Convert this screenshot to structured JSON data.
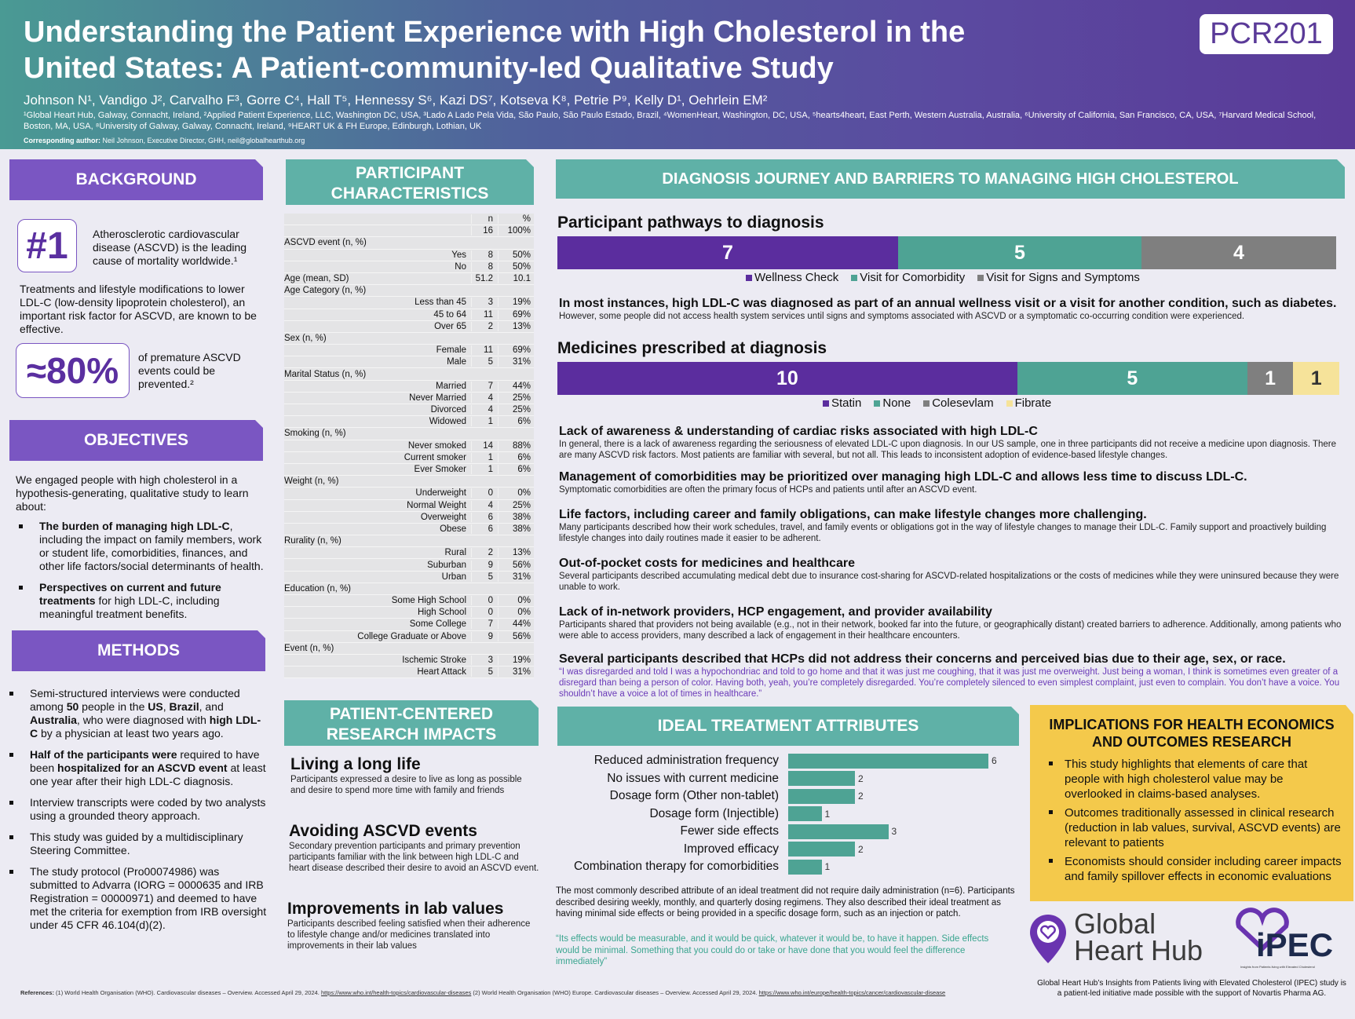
{
  "header": {
    "title": "Understanding the Patient Experience with High Cholesterol in the United States: A Patient-community-led Qualitative Study",
    "badge": "PCR201",
    "authors": "Johnson N¹, Vandigo J², Carvalho F³, Gorre C⁴, Hall T⁵, Hennessy S⁶, Kazi DS⁷, Kotseva K⁸, Petrie P⁹, Kelly D¹, Oehrlein EM²",
    "affiliations": "¹Global Heart Hub, Galway, Connacht, Ireland, ²Applied Patient Experience, LLC, Washington DC, USA, ³Lado A Lado Pela Vida, São Paulo, São Paulo Estado, Brazil, ⁴WomenHeart, Washington, DC, USA, ⁵hearts4heart, East Perth, Western Australia, Australia, ⁶University of California, San Francisco, CA, USA, ⁷Harvard Medical School, Boston, MA, USA, ⁸University of Galway, Galway, Connacht, Ireland, ⁹HEART UK & FH Europe, Edinburgh, Lothian, UK",
    "corr_label": "Corresponding author:",
    "corr_text": " Neil Johnson, Executive Director, GHH, neil@globalhearthub.org"
  },
  "background": {
    "heading": "BACKGROUND",
    "stat1": "#1",
    "stat1_text": "Atherosclerotic cardiovascular disease (ASCVD) is the leading cause of mortality worldwide.¹",
    "para": "Treatments and lifestyle modifications to lower LDL-C (low-density lipoprotein cholesterol), an important risk factor for ASCVD, are known to be effective.",
    "stat2": "≈80%",
    "stat2_text": "of premature ASCVD events could be prevented.²"
  },
  "objectives": {
    "heading": "OBJECTIVES",
    "intro": "We engaged people with high cholesterol  in a hypothesis-generating, qualitative study to learn about:",
    "items": [
      {
        "bold": "The burden of managing high LDL-C",
        "text": ", including the impact on family members, work or student life, comorbidities, finances, and other life factors/social determinants of health."
      },
      {
        "bold": "Perspectives on current and future treatments",
        "text": " for high LDL-C, including meaningful treatment benefits."
      }
    ]
  },
  "methods": {
    "heading": "METHODS",
    "items": [
      "Semi-structured interviews were conducted among <b>50</b> people in the <b>US</b>, <b>Brazil</b>, and <b>Australia</b>, who were diagnosed with <b>high LDL-C</b> by a physician at least two years ago.",
      "<b>Half of the participants were</b> required to have been <b>hospitalized for an ASCVD event</b> at least one year after their high LDL-C diagnosis.",
      "Interview transcripts were coded by two analysts using a grounded theory approach.",
      "This study was guided by a multidisciplinary Steering Committee.",
      "The study protocol (Pro00074986) was submitted to Advarra (IORG = 0000635 and IRB Registration = 00000971) and deemed to have met the criteria for exemption from IRB oversight under 45 CFR 46.104(d)(2)."
    ]
  },
  "participants": {
    "heading": "PARTICIPANT CHARACTERISTICS",
    "col_n": "n",
    "col_pct": "%",
    "rows": [
      {
        "type": "total",
        "label": "",
        "n": "16",
        "pct": "100%"
      },
      {
        "type": "cat",
        "label": "ASCVD event (n, %)"
      },
      {
        "type": "row",
        "label": "Yes",
        "n": "8",
        "pct": "50%"
      },
      {
        "type": "row",
        "label": "No",
        "n": "8",
        "pct": "50%"
      },
      {
        "type": "catval",
        "label": "Age (mean, SD)",
        "n": "51.2",
        "pct": "10.1"
      },
      {
        "type": "cat",
        "label": "Age Category (n, %)"
      },
      {
        "type": "row",
        "label": "Less than 45",
        "n": "3",
        "pct": "19%"
      },
      {
        "type": "row",
        "label": "45 to 64",
        "n": "11",
        "pct": "69%"
      },
      {
        "type": "row",
        "label": "Over 65",
        "n": "2",
        "pct": "13%"
      },
      {
        "type": "cat",
        "label": "Sex (n, %)"
      },
      {
        "type": "row",
        "label": "Female",
        "n": "11",
        "pct": "69%"
      },
      {
        "type": "row",
        "label": "Male",
        "n": "5",
        "pct": "31%"
      },
      {
        "type": "cat",
        "label": "Marital Status (n, %)"
      },
      {
        "type": "row",
        "label": "Married",
        "n": "7",
        "pct": "44%"
      },
      {
        "type": "row",
        "label": "Never Married",
        "n": "4",
        "pct": "25%"
      },
      {
        "type": "row",
        "label": "Divorced",
        "n": "4",
        "pct": "25%"
      },
      {
        "type": "row",
        "label": "Widowed",
        "n": "1",
        "pct": "6%"
      },
      {
        "type": "cat",
        "label": "Smoking (n, %)"
      },
      {
        "type": "row",
        "label": "Never smoked",
        "n": "14",
        "pct": "88%"
      },
      {
        "type": "row",
        "label": "Current smoker",
        "n": "1",
        "pct": "6%"
      },
      {
        "type": "row",
        "label": "Ever Smoker",
        "n": "1",
        "pct": "6%"
      },
      {
        "type": "cat",
        "label": "Weight (n, %)"
      },
      {
        "type": "row",
        "label": "Underweight",
        "n": "0",
        "pct": "0%"
      },
      {
        "type": "row",
        "label": "Normal Weight",
        "n": "4",
        "pct": "25%"
      },
      {
        "type": "row",
        "label": "Overweight",
        "n": "6",
        "pct": "38%"
      },
      {
        "type": "row",
        "label": "Obese",
        "n": "6",
        "pct": "38%"
      },
      {
        "type": "cat",
        "label": "Rurality (n, %)"
      },
      {
        "type": "row",
        "label": "Rural",
        "n": "2",
        "pct": "13%"
      },
      {
        "type": "row",
        "label": "Suburban",
        "n": "9",
        "pct": "56%"
      },
      {
        "type": "row",
        "label": "Urban",
        "n": "5",
        "pct": "31%"
      },
      {
        "type": "cat",
        "label": "Education (n, %)"
      },
      {
        "type": "row",
        "label": "Some High School",
        "n": "0",
        "pct": "0%"
      },
      {
        "type": "row",
        "label": "High School",
        "n": "0",
        "pct": "0%"
      },
      {
        "type": "row",
        "label": "Some College",
        "n": "7",
        "pct": "44%"
      },
      {
        "type": "row",
        "label": "College Graduate or Above",
        "n": "9",
        "pct": "56%"
      },
      {
        "type": "cat",
        "label": "Event (n, %)"
      },
      {
        "type": "row",
        "label": "Ischemic Stroke",
        "n": "3",
        "pct": "19%"
      },
      {
        "type": "row",
        "label": "Heart Attack",
        "n": "5",
        "pct": "31%"
      }
    ]
  },
  "impacts": {
    "heading": "PATIENT-CENTERED RESEARCH IMPACTS",
    "items": [
      {
        "title": "Living a long life",
        "text": "Participants expressed a desire to live as long as possible and desire to spend more time with family and friends"
      },
      {
        "title": "Avoiding ASCVD events",
        "text": "Secondary prevention participants and primary prevention participants familiar with the link between high LDL-C and heart disease described their desire to avoid an ASCVD event."
      },
      {
        "title": "Improvements in lab values",
        "text": "Participants described feeling satisfied when their adherence to lifestyle change and/or medicines translated into improvements in their lab values"
      }
    ]
  },
  "diagnosis": {
    "heading": "DIAGNOSIS JOURNEY AND BARRIERS TO MANAGING HIGH CHOLESTEROL",
    "finding_bold": "In most instances, high LDL-C was diagnosed as part of an annual wellness visit or a visit for another condition, such as diabetes.",
    "finding_text": "However, some people did not access health system services until signs and symptoms associated with ASCVD or a symptomatic co-occurring condition were experienced.",
    "themes": [
      {
        "title": "Lack of awareness & understanding of cardiac risks associated with high LDL-C",
        "text": "In general, there is a lack of awareness regarding the seriousness of elevated LDL-C upon diagnosis. In our US sample, one in three participants did not receive a medicine upon diagnosis. There are many ASCVD risk factors. Most patients are familiar with several, but not all. This leads to inconsistent adoption of evidence-based lifestyle changes."
      },
      {
        "title": "Management of comorbidities may be prioritized over managing high LDL-C and allows less time to discuss LDL-C.",
        "text": "Symptomatic comorbidities are often the primary focus of HCPs and patients until after an ASCVD event."
      },
      {
        "title": "Life factors, including career and family obligations, can make lifestyle changes more challenging.",
        "text": "Many participants described how their work schedules, travel, and family events or obligations got in the way of lifestyle changes to manage their LDL-C. Family support and proactively building lifestyle changes into daily routines made it easier to be adherent."
      },
      {
        "title": "Out-of-pocket costs for medicines and healthcare",
        "text": "Several participants described accumulating medical debt due to insurance cost-sharing for ASCVD-related hospitalizations or the costs of medicines while they were uninsured because they were unable to work."
      },
      {
        "title": "Lack of in-network providers, HCP engagement, and provider availability",
        "text": "Participants shared that providers not being available (e.g., not in their network, booked far into the future, or geographically distant) created barriers to adherence. Additionally, among patients who were able to access providers, many described a lack of engagement in their healthcare encounters."
      },
      {
        "title": "Several participants described that HCPs did not address their concerns and perceived bias due to their age, sex, or race.",
        "text": "“I was disregarded and told I was a hypochondriac and told to go home and that it was just me coughing, that it was just me overweight. Just being a woman, I think is sometimes even greater of a disregard than being a person of color. Having both, yeah, you’re completely disregarded. You’re completely silenced to even simplest complaint, just even to complain. You don’t have a voice. You shouldn’t have a voice a lot of times in healthcare.”",
        "quote": true
      }
    ]
  },
  "ideal": {
    "heading": "IDEAL TREATMENT ATTRIBUTES",
    "summary": "The most commonly described attribute of an ideal treatment did not require daily administration (n=6). Participants described desiring weekly, monthly, and quarterly dosing regimens. They also described their ideal treatment as having minimal side effects or being provided in a specific dosage form, such as an injection or patch.",
    "quote": "“Its effects would be measurable, and it would be quick, whatever it would be, to have it happen. Side effects would be minimal. Something that you could do or take or have done that you would feel the difference immediately”"
  },
  "implications": {
    "heading": "IMPLICATIONS FOR HEALTH ECONOMICS AND OUTCOMES RESEARCH",
    "items": [
      "This study highlights that elements of care that people with high cholesterol value may be overlooked in claims-based analyses.",
      "Outcomes traditionally assessed in clinical research (reduction in lab values, survival, ASCVD events) are relevant to patients",
      "Economists should consider including career impacts and family spillover effects in economic evaluations"
    ]
  },
  "logos": {
    "ghh_line1": "Global",
    "ghh_line2": "Heart Hub",
    "ipec": "iPEC",
    "ipec_sub": "Insights from Patients living with Elevated Cholesterol",
    "support": "Global Heart Hub’s Insights from Patients living with Elevated Cholesterol (IPEC) study is a patient-led initiative made possible with the support of Novartis Pharma AG."
  },
  "references": {
    "label": "References:",
    "ref1": " (1) World Health Organisation (WHO). Cardiovascular diseases – Overview. Accessed April 29, 2024. ",
    "ref1_link": "https://www.who.int/health-topics/cardiovascular-diseases",
    "ref2": " (2) World Health Organisation (WHO) Europe. Cardiovascular diseases – Overview. Accessed April 29, 2024. ",
    "ref2_link": "https://www.who.int/europe/health-topics/cancer/cardiovascular-disease"
  },
  "colors": {
    "purple": "#5b2d9e",
    "teal": "#4ea394",
    "gray": "#7f7f7f",
    "yellow": "#f6e39a"
  },
  "chart_data": [
    {
      "type": "bar",
      "orientation": "horizontal-stacked",
      "title": "Participant pathways to diagnosis",
      "series": [
        {
          "name": "Wellness Check",
          "values": [
            7
          ],
          "color": "#5b2d9e"
        },
        {
          "name": "Visit for Comorbidity",
          "values": [
            5
          ],
          "color": "#4ea394"
        },
        {
          "name": "Visit for Signs and Symptoms",
          "values": [
            4
          ],
          "color": "#7f7f7f"
        }
      ],
      "legend": "bottom"
    },
    {
      "type": "bar",
      "orientation": "horizontal-stacked",
      "title": "Medicines prescribed at diagnosis",
      "series": [
        {
          "name": "Statin",
          "values": [
            10
          ],
          "color": "#5b2d9e"
        },
        {
          "name": "None",
          "values": [
            5
          ],
          "color": "#4ea394"
        },
        {
          "name": "Colesevlam",
          "values": [
            1
          ],
          "color": "#7f7f7f"
        },
        {
          "name": "Fibrate",
          "values": [
            1
          ],
          "color": "#f6e39a"
        }
      ],
      "legend": "bottom"
    },
    {
      "type": "bar",
      "orientation": "horizontal",
      "title": "IDEAL TREATMENT ATTRIBUTES",
      "categories": [
        "Reduced administration frequency",
        "No issues with current medicine",
        "Dosage form (Other non-tablet)",
        "Dosage form (Injectible)",
        "Fewer side effects",
        "Improved efficacy",
        "Combination therapy for comorbidities"
      ],
      "values": [
        6,
        2,
        2,
        1,
        3,
        2,
        1
      ],
      "xlim": [
        0,
        6
      ],
      "grid": false
    }
  ]
}
